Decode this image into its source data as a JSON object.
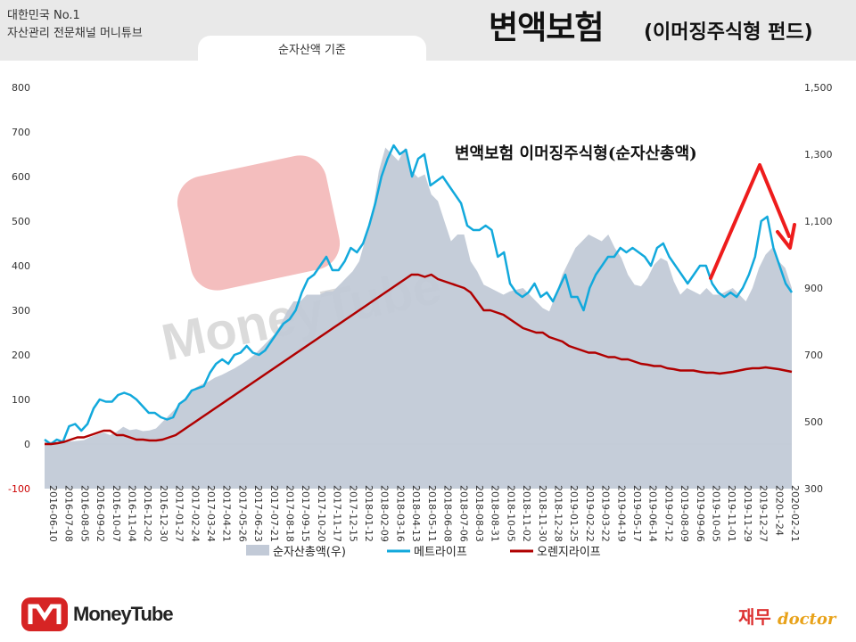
{
  "header": {
    "brand_line1": "대한민국 No.1",
    "brand_line2": "자산관리 전문채널 머니튜브",
    "basis_tab": "순자산액 기준",
    "title_main": "변액보험",
    "title_sub": "(이머징주식형 펀드)"
  },
  "watermark": {
    "text": "MoneyTube"
  },
  "footer": {
    "logo_text": "MoneyTube",
    "doctor_ko": "재무",
    "doctor_en": "doctor"
  },
  "colors": {
    "area": "#c2cad7",
    "metlife": "#12a9dc",
    "orange": "#b00000",
    "arrow": "#ee1c1c",
    "axis_text": "#333333",
    "neg_label": "#cc0000"
  },
  "chart_data": {
    "type": "line",
    "title": "변액보험 이머징주식형(순자산총액)",
    "x_tick_labels": [
      "2016-06-10",
      "2016-07-08",
      "2016-08-05",
      "2016-09-02",
      "2016-10-07",
      "2016-11-04",
      "2016-12-02",
      "2016-12-30",
      "2017-01-27",
      "2017-02-24",
      "2017-03-24",
      "2017-04-21",
      "2017-05-26",
      "2017-06-23",
      "2017-07-21",
      "2017-08-18",
      "2017-09-15",
      "2017-10-20",
      "2017-11-17",
      "2017-12-15",
      "2018-01-12",
      "2018-02-09",
      "2018-03-16",
      "2018-04-13",
      "2018-05-11",
      "2018-06-08",
      "2018-07-06",
      "2018-08-03",
      "2018-08-31",
      "2018-10-05",
      "2018-11-02",
      "2018-11-30",
      "2018-12-28",
      "2019-01-25",
      "2019-02-22",
      "2019-03-22",
      "2019-04-19",
      "2019-05-17",
      "2019-06-14",
      "2019-07-12",
      "2019-08-09",
      "2019-09-06",
      "2019-10-05",
      "2019-11-01",
      "2019-11-29",
      "2019-12-27",
      "2020-1-24",
      "2020-02-21"
    ],
    "y_left": {
      "ticks": [
        -100,
        0,
        100,
        200,
        300,
        400,
        500,
        600,
        700,
        800
      ],
      "ylim": [
        -100,
        800
      ]
    },
    "y_right": {
      "ticks": [
        300,
        500,
        700,
        900,
        1100,
        1300,
        1500
      ],
      "ylim": [
        300,
        1500
      ]
    },
    "legend_position": "bottom",
    "series": [
      {
        "name": "순자산총액(우)",
        "axis": "right",
        "values": [
          440,
          440,
          440,
          440,
          441,
          443,
          445,
          455,
          462,
          468,
          460,
          470,
          485,
          475,
          478,
          472,
          474,
          480,
          500,
          520,
          540,
          560,
          580,
          602,
          612,
          620,
          632,
          640,
          650,
          660,
          672,
          685,
          700,
          720,
          740,
          760,
          790,
          830,
          860,
          860,
          880,
          880,
          880,
          890,
          890,
          910,
          930,
          950,
          980,
          1050,
          1120,
          1250,
          1320,
          1300,
          1280,
          1320,
          1250,
          1230,
          1240,
          1180,
          1160,
          1100,
          1040,
          1060,
          1060,
          980,
          950,
          910,
          900,
          890,
          880,
          890,
          895,
          900,
          880,
          860,
          840,
          830,
          880,
          940,
          980,
          1020,
          1040,
          1060,
          1050,
          1040,
          1060,
          1020,
          990,
          940,
          910,
          905,
          930,
          970,
          990,
          980,
          920,
          880,
          900,
          890,
          880,
          900,
          880,
          880,
          890,
          900,
          880,
          860,
          900,
          960,
          1000,
          1020,
          980,
          960,
          900
        ]
      },
      {
        "name": "메트라이프",
        "values": [
          10,
          0,
          10,
          5,
          40,
          45,
          30,
          45,
          80,
          100,
          95,
          95,
          110,
          115,
          110,
          100,
          85,
          70,
          70,
          60,
          55,
          60,
          90,
          100,
          120,
          125,
          130,
          160,
          180,
          190,
          180,
          200,
          205,
          220,
          205,
          200,
          210,
          230,
          250,
          270,
          280,
          300,
          340,
          370,
          380,
          400,
          420,
          390,
          390,
          410,
          440,
          430,
          450,
          490,
          540,
          600,
          640,
          670,
          650,
          660,
          600,
          640,
          650,
          580,
          590,
          600,
          580,
          560,
          540,
          490,
          480,
          480,
          490,
          480,
          420,
          430,
          360,
          340,
          330,
          340,
          360,
          330,
          340,
          320,
          350,
          380,
          330,
          330,
          300,
          350,
          380,
          400,
          420,
          420,
          440,
          430,
          440,
          430,
          420,
          400,
          440,
          450,
          420,
          400,
          380,
          360,
          380,
          400,
          400,
          360,
          340,
          330,
          340,
          330,
          350,
          380,
          420,
          500,
          510,
          440,
          400,
          360,
          340
        ]
      },
      {
        "name": "오렌지라이프",
        "values": [
          0,
          0,
          2,
          5,
          10,
          15,
          15,
          20,
          25,
          30,
          30,
          20,
          20,
          15,
          10,
          10,
          8,
          8,
          10,
          15,
          20,
          30,
          40,
          50,
          60,
          70,
          80,
          90,
          100,
          110,
          120,
          130,
          140,
          150,
          160,
          170,
          180,
          190,
          200,
          210,
          220,
          230,
          240,
          250,
          260,
          270,
          280,
          290,
          300,
          310,
          320,
          330,
          340,
          350,
          360,
          370,
          380,
          380,
          375,
          380,
          370,
          365,
          360,
          355,
          350,
          340,
          320,
          300,
          300,
          295,
          290,
          280,
          270,
          260,
          255,
          250,
          250,
          240,
          235,
          230,
          220,
          215,
          210,
          205,
          205,
          200,
          195,
          195,
          190,
          190,
          185,
          180,
          178,
          175,
          175,
          170,
          168,
          165,
          165,
          165,
          162,
          160,
          160,
          158,
          160,
          162,
          165,
          168,
          170,
          170,
          172,
          170,
          168,
          165,
          162
        ]
      }
    ]
  }
}
